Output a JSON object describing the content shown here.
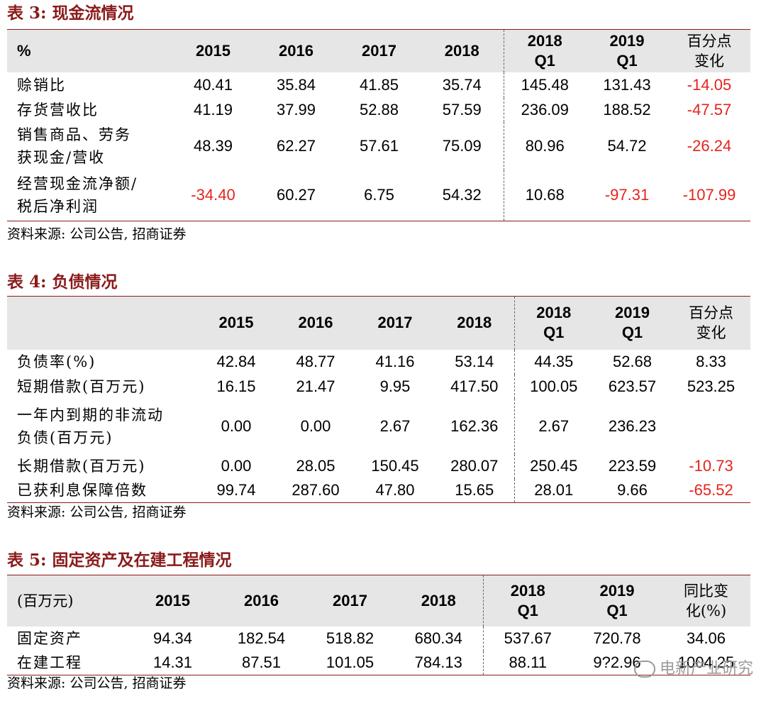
{
  "t3": {
    "title": "表 3:  现金流情况",
    "headers": [
      "%",
      "2015",
      "2016",
      "2017",
      "2018",
      "2018\nQ1",
      "2019\nQ1",
      "百分点\n变化"
    ],
    "rows": [
      {
        "label": "赊销比",
        "values": [
          "40.41",
          "35.84",
          "41.85",
          "35.74",
          "145.48",
          "131.43",
          "-14.05"
        ],
        "red": [
          6
        ]
      },
      {
        "label": "存货营收比",
        "values": [
          "41.19",
          "37.99",
          "52.88",
          "57.59",
          "236.09",
          "188.52",
          "-47.57"
        ],
        "red": [
          6
        ]
      },
      {
        "label": "销售商品、劳务\n获现金/营收",
        "values": [
          "48.39",
          "62.27",
          "57.61",
          "75.09",
          "80.96",
          "54.72",
          "-26.24"
        ],
        "red": [
          6
        ]
      },
      {
        "label": "经营现金流净额/\n税后净利润",
        "values": [
          "-34.40",
          "60.27",
          "6.75",
          "54.32",
          "10.68",
          "-97.31",
          "-107.99"
        ],
        "red": [
          0,
          5,
          6
        ]
      }
    ],
    "source": "资料来源:  公司公告,  招商证券"
  },
  "t4": {
    "title": "表 4:  负债情况",
    "headers": [
      "",
      "2015",
      "2016",
      "2017",
      "2018",
      "2018\nQ1",
      "2019\nQ1",
      "百分点\n变化"
    ],
    "rows": [
      {
        "label": "负债率(%)",
        "values": [
          "42.84",
          "48.77",
          "41.16",
          "53.14",
          "44.35",
          "52.68",
          "8.33"
        ],
        "red": []
      },
      {
        "label": "短期借款(百万元)",
        "values": [
          "16.15",
          "21.47",
          "9.95",
          "417.50",
          "100.05",
          "623.57",
          "523.25"
        ],
        "red": []
      },
      {
        "label": "一年内到期的非流动\n负债(百万元)",
        "values": [
          "0.00",
          "0.00",
          "2.67",
          "162.36",
          "2.67",
          "236.23",
          ""
        ],
        "red": []
      },
      {
        "label": "长期借款(百万元)",
        "values": [
          "0.00",
          "28.05",
          "150.45",
          "280.07",
          "250.45",
          "223.59",
          "-10.73"
        ],
        "red": [
          6
        ]
      },
      {
        "label": "已获利息保障倍数",
        "values": [
          "99.74",
          "287.60",
          "47.80",
          "15.65",
          "28.01",
          "9.66",
          "-65.52"
        ],
        "red": [
          6
        ]
      }
    ],
    "source": "资料来源:  公司公告,  招商证券"
  },
  "t5": {
    "title": "表 5:  固定资产及在建工程情况",
    "headers": [
      "(百万元)",
      "2015",
      "2016",
      "2017",
      "2018",
      "2018\nQ1",
      "2019\nQ1",
      "同比变\n化(%)"
    ],
    "rows": [
      {
        "label": "固定资产",
        "values": [
          "94.34",
          "182.54",
          "518.82",
          "680.34",
          "537.67",
          "720.78",
          "34.06"
        ],
        "red": []
      },
      {
        "label": "在建工程",
        "values": [
          "14.31",
          "87.51",
          "101.05",
          "784.13",
          "88.11",
          "9?2.96",
          "1004.25"
        ],
        "red": []
      }
    ],
    "source": "资料来源:  公司公告,  招商证券"
  },
  "watermark": "电新产业研究"
}
